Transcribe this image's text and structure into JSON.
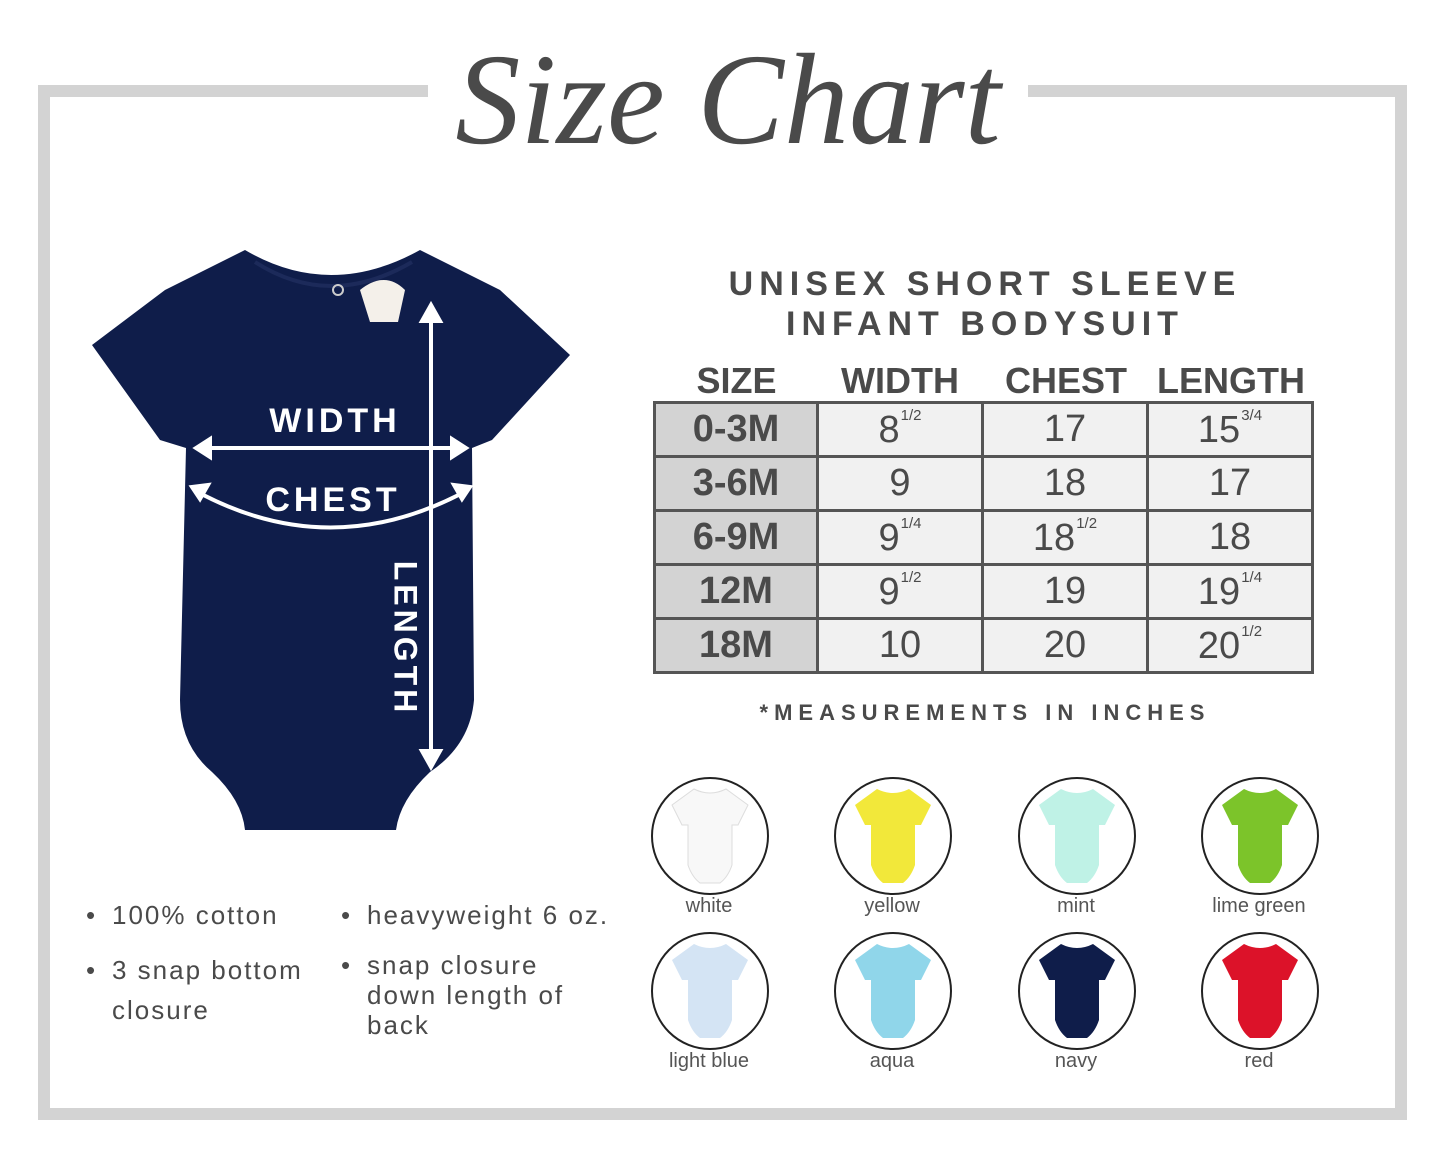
{
  "title": "Size Chart",
  "product": {
    "line1": "UNISEX SHORT SLEEVE",
    "line2": "INFANT BODYSUIT"
  },
  "garment_color": "#0f1d4a",
  "measure_labels": {
    "width": "WIDTH",
    "chest": "CHEST",
    "length": "LENGTH"
  },
  "table": {
    "headers": [
      "SIZE",
      "WIDTH",
      "CHEST",
      "LENGTH"
    ],
    "rows": [
      {
        "size": "0-3M",
        "width": {
          "whole": "8",
          "frac": "1/2"
        },
        "chest": {
          "whole": "17",
          "frac": ""
        },
        "length": {
          "whole": "15",
          "frac": "3/4"
        }
      },
      {
        "size": "3-6M",
        "width": {
          "whole": "9",
          "frac": ""
        },
        "chest": {
          "whole": "18",
          "frac": ""
        },
        "length": {
          "whole": "17",
          "frac": ""
        }
      },
      {
        "size": "6-9M",
        "width": {
          "whole": "9",
          "frac": "1/4"
        },
        "chest": {
          "whole": "18",
          "frac": "1/2"
        },
        "length": {
          "whole": "18",
          "frac": ""
        }
      },
      {
        "size": "12M",
        "width": {
          "whole": "9",
          "frac": "1/2"
        },
        "chest": {
          "whole": "19",
          "frac": ""
        },
        "length": {
          "whole": "19",
          "frac": "1/4"
        }
      },
      {
        "size": "18M",
        "width": {
          "whole": "10",
          "frac": ""
        },
        "chest": {
          "whole": "20",
          "frac": ""
        },
        "length": {
          "whole": "20",
          "frac": "1/2"
        }
      }
    ],
    "note": "*MEASUREMENTS IN INCHES"
  },
  "features": [
    {
      "text": "100% cotton"
    },
    {
      "text": "heavyweight 6 oz."
    },
    {
      "text": "3 snap bottom closure"
    },
    {
      "text": "snap closure down length of back"
    }
  ],
  "colors": [
    {
      "name": "white",
      "hex": "#f8f8f8"
    },
    {
      "name": "yellow",
      "hex": "#f2e83a"
    },
    {
      "name": "mint",
      "hex": "#bff2e6"
    },
    {
      "name": "lime green",
      "hex": "#7cc42a"
    },
    {
      "name": "light blue",
      "hex": "#d4e4f4"
    },
    {
      "name": "aqua",
      "hex": "#90d6ea"
    },
    {
      "name": "navy",
      "hex": "#0f1d4a"
    },
    {
      "name": "red",
      "hex": "#dc1229"
    }
  ]
}
